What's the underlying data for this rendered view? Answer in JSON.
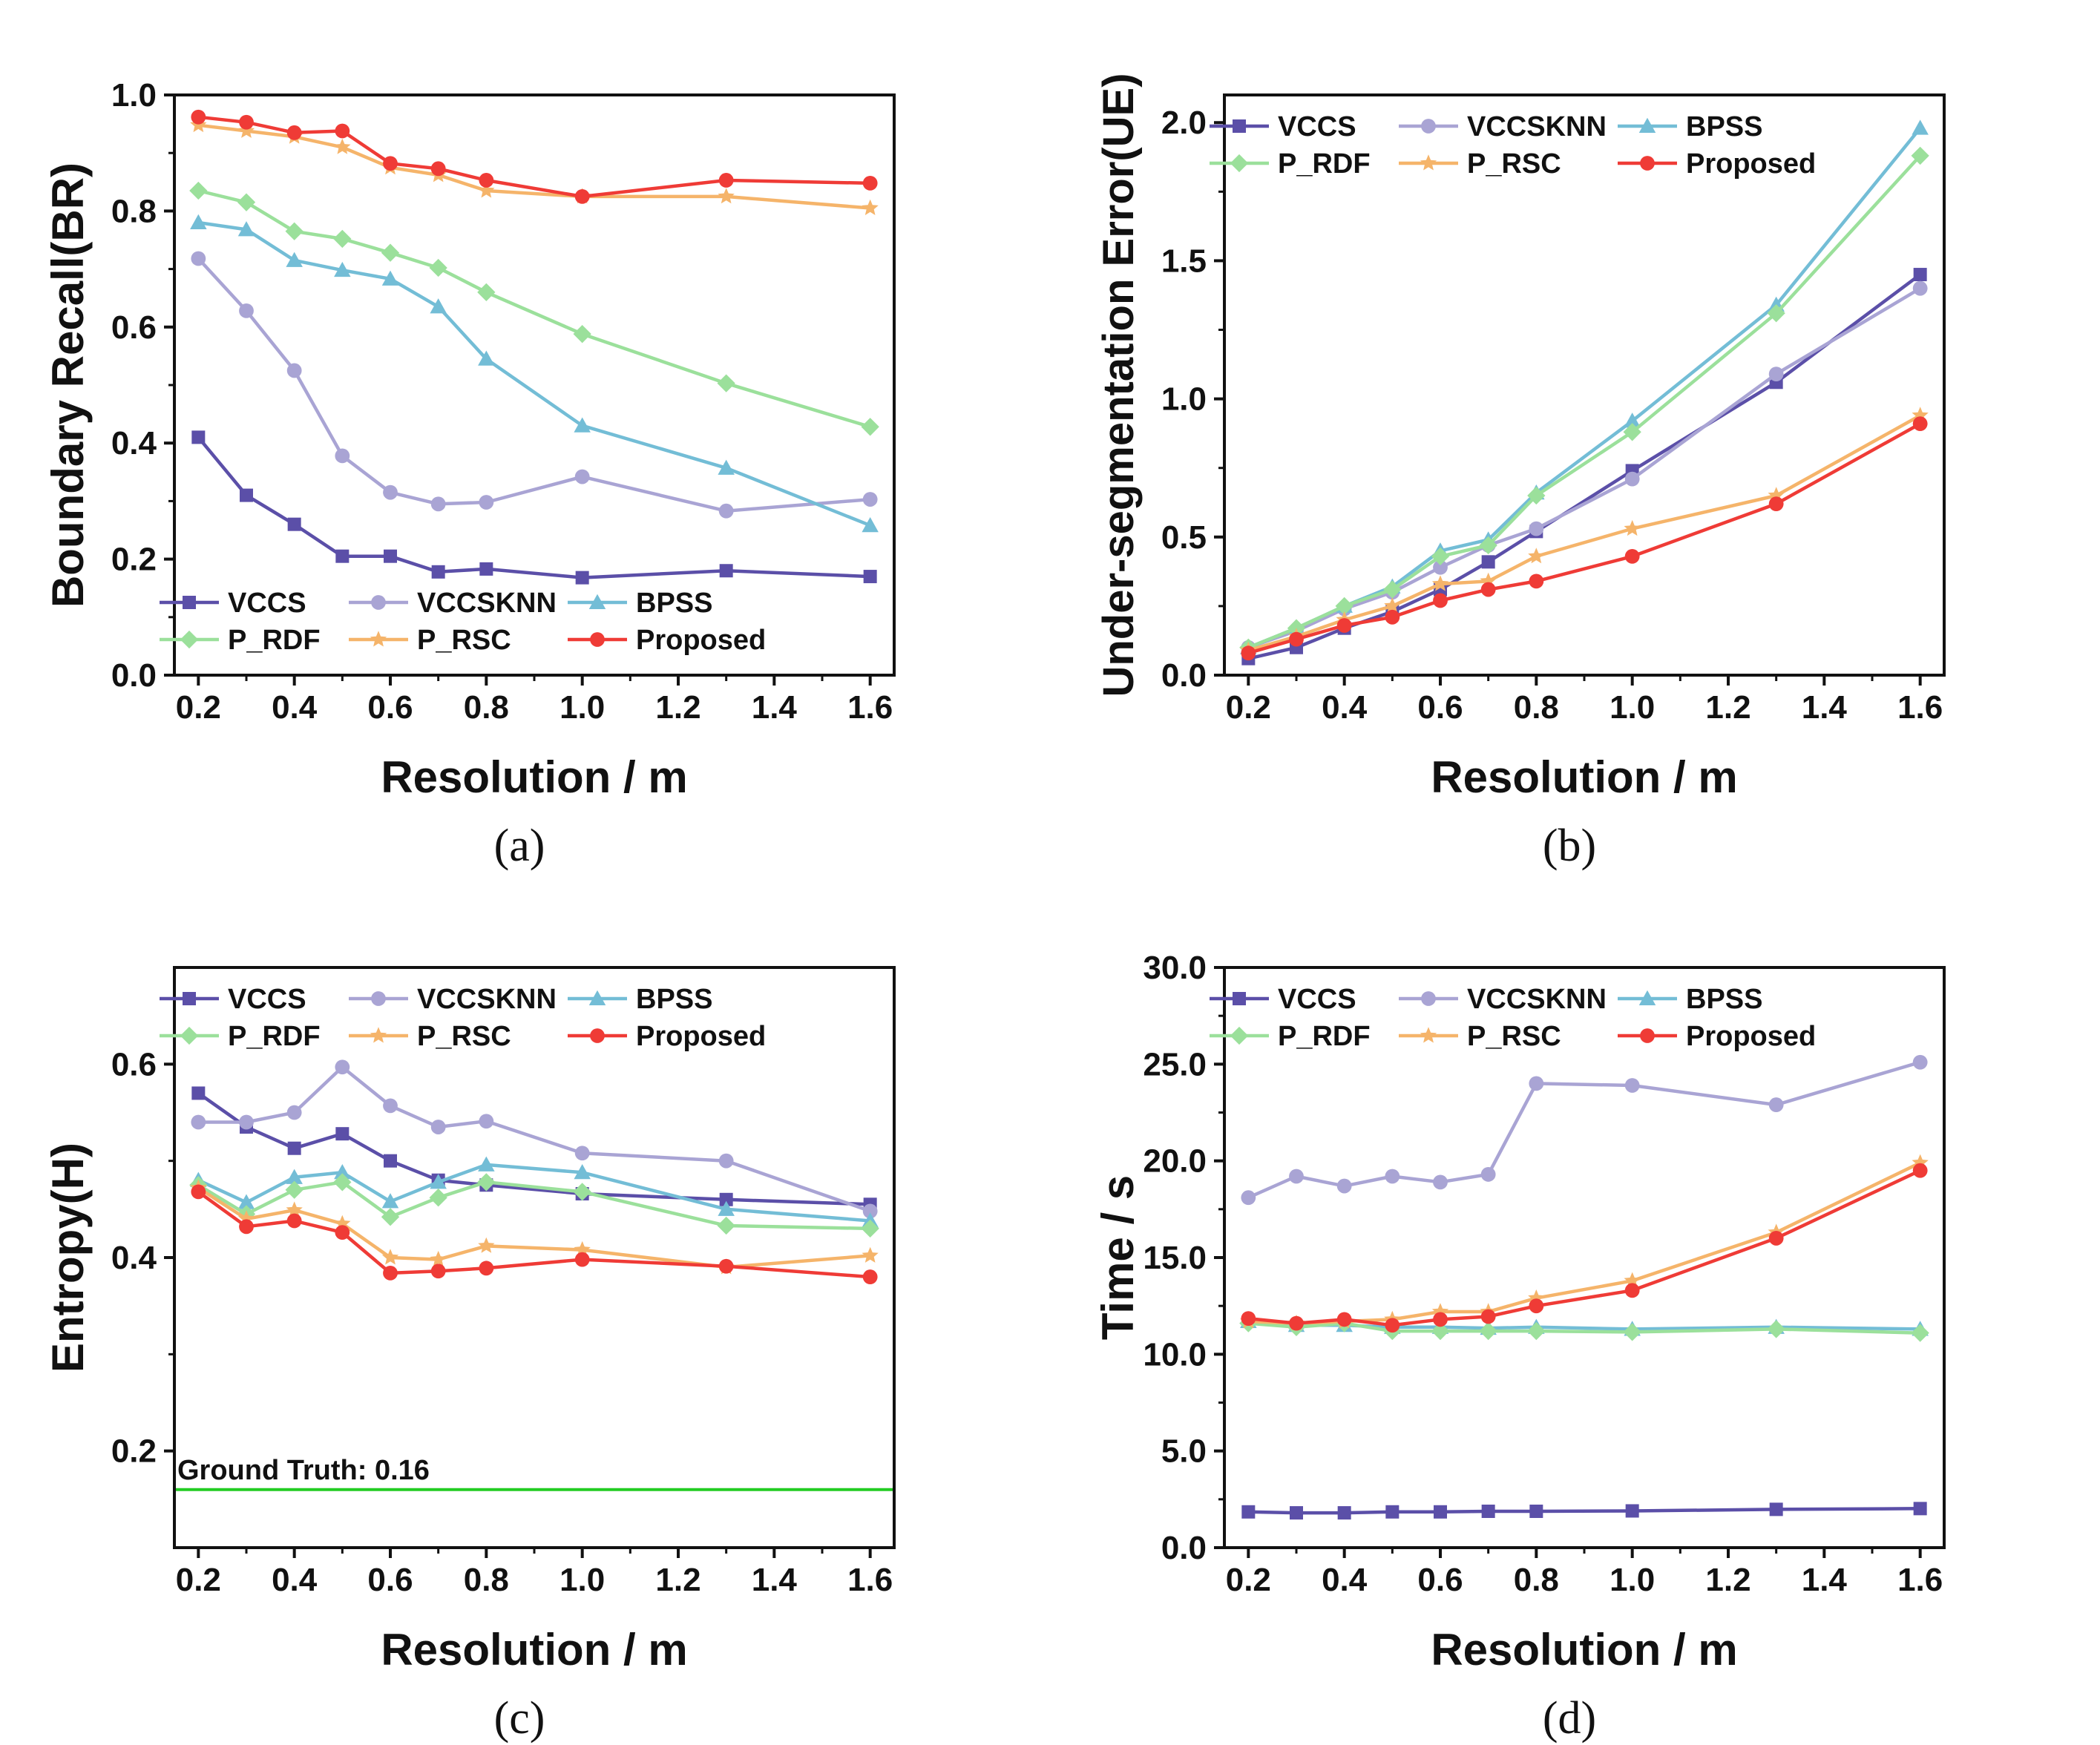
{
  "figure": {
    "x_categories": [
      0.2,
      0.3,
      0.4,
      0.5,
      0.6,
      0.7,
      0.8,
      1.0,
      1.3,
      1.6
    ],
    "series_styles": [
      {
        "name": "VCCS",
        "color": "#5b4fa8",
        "marker": "square"
      },
      {
        "name": "VCCSKNN",
        "color": "#a9a4d4",
        "marker": "circle"
      },
      {
        "name": "BPSS",
        "color": "#73bdd6",
        "marker": "triangle"
      },
      {
        "name": "P_RDF",
        "color": "#9be09b",
        "marker": "diamond"
      },
      {
        "name": "P_RSC",
        "color": "#f5b46a",
        "marker": "star"
      },
      {
        "name": "Proposed",
        "color": "#ef3b36",
        "marker": "circle"
      }
    ]
  },
  "chart_data": [
    {
      "id": "a",
      "type": "line",
      "caption": "(a)",
      "xlabel": "Resolution / m",
      "ylabel": "Boundary Recall(BR)",
      "xlim": [
        0.15,
        1.65
      ],
      "ylim": [
        0.0,
        1.0
      ],
      "xticks": [
        0.2,
        0.4,
        0.6,
        0.8,
        1.0,
        1.2,
        1.4,
        1.6
      ],
      "xtick_labels": [
        "0.2",
        "0.4",
        "0.6",
        "0.8",
        "1.0",
        "1.2",
        "1.4",
        "1.6"
      ],
      "yticks": [
        0.0,
        0.2,
        0.4,
        0.6,
        0.8,
        1.0
      ],
      "ytick_labels": [
        "0.0",
        "0.2",
        "0.4",
        "0.6",
        "0.8",
        "1.0"
      ],
      "legend_position": "bottom",
      "x": [
        0.2,
        0.3,
        0.4,
        0.5,
        0.6,
        0.7,
        0.8,
        1.0,
        1.3,
        1.6
      ],
      "series": [
        {
          "name": "VCCS",
          "values": [
            0.41,
            0.31,
            0.26,
            0.205,
            0.205,
            0.178,
            0.183,
            0.168,
            0.18,
            0.17
          ]
        },
        {
          "name": "VCCSKNN",
          "values": [
            0.718,
            0.628,
            0.525,
            0.378,
            0.315,
            0.295,
            0.298,
            0.342,
            0.283,
            0.303
          ]
        },
        {
          "name": "BPSS",
          "values": [
            0.78,
            0.768,
            0.715,
            0.698,
            0.683,
            0.635,
            0.545,
            0.43,
            0.357,
            0.258
          ]
        },
        {
          "name": "P_RDF",
          "values": [
            0.835,
            0.815,
            0.765,
            0.752,
            0.728,
            0.702,
            0.66,
            0.588,
            0.503,
            0.428
          ]
        },
        {
          "name": "P_RSC",
          "values": [
            0.948,
            0.938,
            0.928,
            0.91,
            0.875,
            0.862,
            0.835,
            0.825,
            0.825,
            0.805
          ]
        },
        {
          "name": "Proposed",
          "values": [
            0.962,
            0.953,
            0.935,
            0.938,
            0.882,
            0.873,
            0.853,
            0.825,
            0.853,
            0.848
          ]
        }
      ]
    },
    {
      "id": "b",
      "type": "line",
      "caption": "(b)",
      "xlabel": "Resolution / m",
      "ylabel": "Under-segmentation Error(UE)",
      "xlim": [
        0.15,
        1.65
      ],
      "ylim": [
        0.0,
        2.1
      ],
      "xticks": [
        0.2,
        0.4,
        0.6,
        0.8,
        1.0,
        1.2,
        1.4,
        1.6
      ],
      "xtick_labels": [
        "0.2",
        "0.4",
        "0.6",
        "0.8",
        "1.0",
        "1.2",
        "1.4",
        "1.6"
      ],
      "yticks": [
        0.0,
        0.5,
        1.0,
        1.5,
        2.0
      ],
      "ytick_labels": [
        "0.0",
        "0.5",
        "1.0",
        "1.5",
        "2.0"
      ],
      "legend_position": "top",
      "x": [
        0.2,
        0.3,
        0.4,
        0.5,
        0.6,
        0.7,
        0.8,
        1.0,
        1.3,
        1.6
      ],
      "series": [
        {
          "name": "VCCS",
          "values": [
            0.06,
            0.1,
            0.17,
            0.23,
            0.31,
            0.41,
            0.52,
            0.74,
            1.06,
            1.45
          ]
        },
        {
          "name": "VCCSKNN",
          "values": [
            0.1,
            0.16,
            0.24,
            0.3,
            0.39,
            0.47,
            0.53,
            0.71,
            1.09,
            1.4
          ]
        },
        {
          "name": "BPSS",
          "values": [
            0.1,
            0.17,
            0.25,
            0.32,
            0.45,
            0.49,
            0.66,
            0.92,
            1.34,
            1.98
          ]
        },
        {
          "name": "P_RDF",
          "values": [
            0.1,
            0.17,
            0.25,
            0.31,
            0.43,
            0.47,
            0.65,
            0.88,
            1.31,
            1.88
          ]
        },
        {
          "name": "P_RSC",
          "values": [
            0.09,
            0.14,
            0.2,
            0.25,
            0.33,
            0.34,
            0.43,
            0.53,
            0.65,
            0.94
          ]
        },
        {
          "name": "Proposed",
          "values": [
            0.08,
            0.13,
            0.18,
            0.21,
            0.27,
            0.31,
            0.34,
            0.43,
            0.62,
            0.91
          ]
        }
      ]
    },
    {
      "id": "c",
      "type": "line",
      "caption": "(c)",
      "xlabel": "Resolution / m",
      "ylabel": "Entropy(H)",
      "xlim": [
        0.15,
        1.65
      ],
      "ylim": [
        0.1,
        0.7
      ],
      "xticks": [
        0.2,
        0.4,
        0.6,
        0.8,
        1.0,
        1.2,
        1.4,
        1.6
      ],
      "xtick_labels": [
        "0.2",
        "0.4",
        "0.6",
        "0.8",
        "1.0",
        "1.2",
        "1.4",
        "1.6"
      ],
      "yticks": [
        0.2,
        0.4,
        0.6
      ],
      "ytick_labels": [
        "0.2",
        "0.4",
        "0.6"
      ],
      "legend_position": "top",
      "reference_line": {
        "value": 0.16,
        "label": "Ground Truth: 0.16",
        "color": "#22cc22"
      },
      "x": [
        0.2,
        0.3,
        0.4,
        0.5,
        0.6,
        0.7,
        0.8,
        1.0,
        1.3,
        1.6
      ],
      "series": [
        {
          "name": "VCCS",
          "values": [
            0.57,
            0.535,
            0.513,
            0.528,
            0.5,
            0.48,
            0.475,
            0.466,
            0.46,
            0.455
          ]
        },
        {
          "name": "VCCSKNN",
          "values": [
            0.54,
            0.54,
            0.55,
            0.597,
            0.557,
            0.535,
            0.541,
            0.508,
            0.5,
            0.448
          ]
        },
        {
          "name": "BPSS",
          "values": [
            0.48,
            0.457,
            0.483,
            0.488,
            0.458,
            0.478,
            0.496,
            0.488,
            0.45,
            0.438
          ]
        },
        {
          "name": "P_RDF",
          "values": [
            0.475,
            0.445,
            0.47,
            0.478,
            0.442,
            0.462,
            0.478,
            0.468,
            0.433,
            0.43
          ]
        },
        {
          "name": "P_RSC",
          "values": [
            0.472,
            0.44,
            0.449,
            0.435,
            0.4,
            0.398,
            0.412,
            0.408,
            0.39,
            0.402
          ]
        },
        {
          "name": "Proposed",
          "values": [
            0.468,
            0.432,
            0.438,
            0.426,
            0.384,
            0.386,
            0.389,
            0.398,
            0.391,
            0.38
          ]
        }
      ]
    },
    {
      "id": "d",
      "type": "line",
      "caption": "(d)",
      "xlabel": "Resolution / m",
      "ylabel": "Time / s",
      "xlim": [
        0.15,
        1.65
      ],
      "ylim": [
        0.0,
        30.0
      ],
      "xticks": [
        0.2,
        0.4,
        0.6,
        0.8,
        1.0,
        1.2,
        1.4,
        1.6
      ],
      "xtick_labels": [
        "0.2",
        "0.4",
        "0.6",
        "0.8",
        "1.0",
        "1.2",
        "1.4",
        "1.6"
      ],
      "yticks": [
        0.0,
        5.0,
        10.0,
        15.0,
        20.0,
        25.0,
        30.0
      ],
      "ytick_labels": [
        "0.0",
        "5.0",
        "10.0",
        "15.0",
        "20.0",
        "25.0",
        "30.0"
      ],
      "legend_position": "top",
      "x": [
        0.2,
        0.3,
        0.4,
        0.5,
        0.6,
        0.7,
        0.8,
        1.0,
        1.3,
        1.6
      ],
      "series": [
        {
          "name": "VCCS",
          "values": [
            1.85,
            1.8,
            1.8,
            1.85,
            1.85,
            1.88,
            1.88,
            1.9,
            1.98,
            2.02
          ]
        },
        {
          "name": "VCCSKNN",
          "values": [
            18.1,
            19.2,
            18.7,
            19.2,
            18.9,
            19.3,
            24.0,
            23.9,
            22.9,
            25.1
          ]
        },
        {
          "name": "BPSS",
          "values": [
            11.7,
            11.5,
            11.5,
            11.4,
            11.4,
            11.35,
            11.4,
            11.3,
            11.4,
            11.3
          ]
        },
        {
          "name": "P_RDF",
          "values": [
            11.6,
            11.4,
            11.6,
            11.2,
            11.2,
            11.2,
            11.2,
            11.15,
            11.3,
            11.1
          ]
        },
        {
          "name": "P_RSC",
          "values": [
            11.7,
            11.6,
            11.7,
            11.8,
            12.2,
            12.2,
            12.9,
            13.8,
            16.3,
            19.9
          ]
        },
        {
          "name": "Proposed",
          "values": [
            11.85,
            11.6,
            11.8,
            11.5,
            11.8,
            11.95,
            12.5,
            13.3,
            16.0,
            19.5
          ]
        }
      ]
    }
  ]
}
